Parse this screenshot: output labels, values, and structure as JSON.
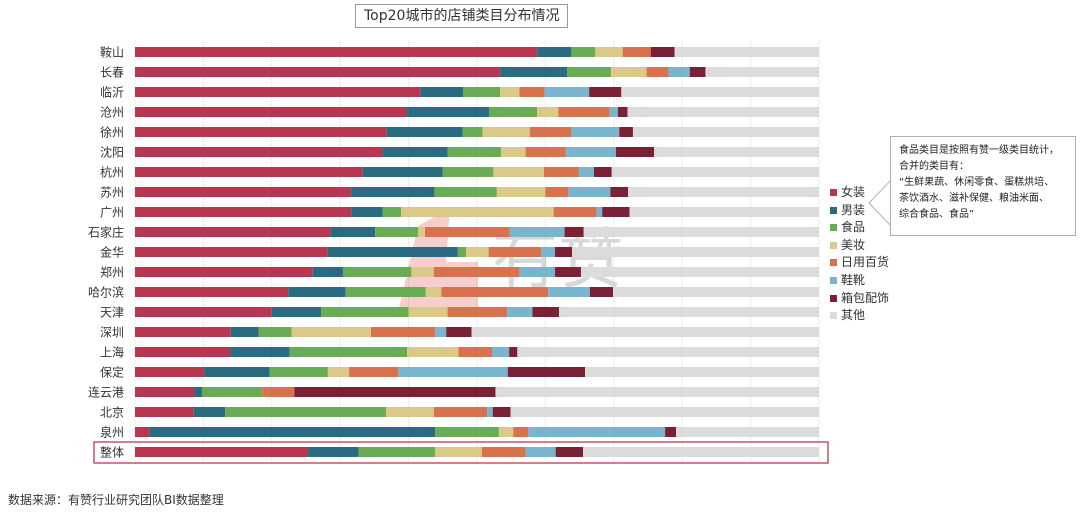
{
  "chart_data": {
    "type": "bar",
    "orientation": "horizontal",
    "stacked": "percent",
    "title": "Top20城市的店铺类目分布情况",
    "categories": [
      "鞍山",
      "长春",
      "临沂",
      "沧州",
      "徐州",
      "沈阳",
      "杭州",
      "苏州",
      "广州",
      "石家庄",
      "金华",
      "郑州",
      "哈尔滨",
      "天津",
      "深圳",
      "上海",
      "保定",
      "连云港",
      "北京",
      "泉州",
      "整体"
    ],
    "highlighted_category": "整体",
    "xlim": [
      0,
      100
    ],
    "grid": true,
    "legend_position": "right",
    "series": [
      {
        "name": "女装",
        "color": "#b83650",
        "values": [
          58.8,
          53.4,
          41.7,
          39.7,
          36.8,
          36.2,
          33.3,
          31.6,
          31.6,
          28.6,
          28.2,
          26.0,
          22.4,
          20.0,
          14.0,
          13.9,
          10.1,
          8.7,
          8.6,
          2.1,
          25.3
        ]
      },
      {
        "name": "男装",
        "color": "#2a6b81",
        "values": [
          5.0,
          9.8,
          6.3,
          12.1,
          11.1,
          9.5,
          11.7,
          12.2,
          4.6,
          6.5,
          19.0,
          4.4,
          8.4,
          7.2,
          4.1,
          8.7,
          9.6,
          1.1,
          4.6,
          41.8,
          7.4
        ]
      },
      {
        "name": "食品",
        "color": "#6aab55",
        "values": [
          3.5,
          6.4,
          5.4,
          7.0,
          2.9,
          7.8,
          7.4,
          9.1,
          2.7,
          6.3,
          1.2,
          10.0,
          11.7,
          12.8,
          4.8,
          17.2,
          8.5,
          8.8,
          23.5,
          9.3,
          11.2
        ]
      },
      {
        "name": "美妆",
        "color": "#dbc98a",
        "values": [
          4.0,
          5.2,
          2.8,
          3.1,
          6.9,
          3.6,
          7.4,
          7.1,
          22.3,
          1.0,
          3.3,
          3.3,
          2.3,
          5.7,
          11.6,
          7.5,
          3.1,
          0.0,
          7.0,
          2.1,
          6.8
        ]
      },
      {
        "name": "日用百货",
        "color": "#d8714d",
        "values": [
          4.1,
          3.2,
          3.7,
          7.5,
          6.1,
          5.9,
          5.1,
          3.4,
          6.3,
          12.4,
          7.7,
          12.5,
          15.6,
          8.7,
          9.4,
          4.9,
          7.2,
          4.7,
          7.8,
          2.2,
          6.4
        ]
      },
      {
        "name": "鞋靴",
        "color": "#79b5cf",
        "values": [
          0.0,
          3.1,
          6.5,
          1.2,
          7.0,
          7.3,
          2.2,
          6.1,
          0.8,
          8.0,
          2.0,
          5.2,
          6.1,
          3.7,
          1.6,
          2.5,
          16.0,
          0.0,
          0.8,
          20.0,
          4.4
        ]
      },
      {
        "name": "箱包配饰",
        "color": "#7a2136",
        "values": [
          3.5,
          2.3,
          4.7,
          1.4,
          2.0,
          5.6,
          2.6,
          2.6,
          4.0,
          2.8,
          2.5,
          3.8,
          3.4,
          3.9,
          3.7,
          1.2,
          11.3,
          29.4,
          2.6,
          1.6,
          4.0
        ]
      },
      {
        "name": "其他",
        "color": "#dcdcdc",
        "values": [
          21.1,
          16.6,
          28.9,
          28.0,
          27.2,
          24.1,
          30.3,
          27.9,
          27.7,
          34.4,
          36.1,
          34.8,
          30.1,
          38.0,
          50.8,
          44.1,
          34.2,
          47.3,
          45.1,
          20.9,
          34.5
        ]
      }
    ]
  },
  "note": {
    "lines": [
      "食品类目是按照有赞一级类目统计，",
      "合并的类目有：",
      "“生鲜果蔬、休闲零食、蛋糕烘培、",
      "茶饮酒水、滋补保健、粮油米面、",
      "综合食品、食品”"
    ]
  },
  "watermark": "有赞",
  "source": "数据来源：有赞行业研究团队BI数据整理"
}
